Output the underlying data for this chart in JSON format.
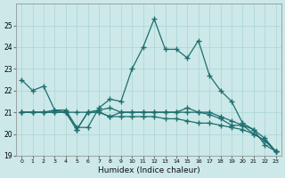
{
  "xlabel": "Humidex (Indice chaleur)",
  "background_color": "#cce8e8",
  "line_color": "#1e6e6e",
  "x": [
    0,
    1,
    2,
    3,
    4,
    5,
    6,
    7,
    8,
    9,
    10,
    11,
    12,
    13,
    14,
    15,
    16,
    17,
    18,
    19,
    20,
    21,
    22,
    23
  ],
  "series1": [
    22.5,
    22.0,
    22.2,
    21.1,
    21.1,
    20.3,
    20.3,
    21.2,
    21.6,
    21.5,
    23.0,
    24.0,
    25.3,
    23.9,
    23.9,
    23.5,
    24.3,
    22.7,
    22.0,
    21.5,
    20.5,
    20.2,
    19.5,
    19.2
  ],
  "series2": [
    21.0,
    21.0,
    21.0,
    21.1,
    21.0,
    20.2,
    21.0,
    21.1,
    21.2,
    21.0,
    21.0,
    21.0,
    21.0,
    21.0,
    21.0,
    21.2,
    21.0,
    21.0,
    20.8,
    20.6,
    20.4,
    20.2,
    19.8,
    19.2
  ],
  "series3": [
    21.0,
    21.0,
    21.0,
    21.0,
    21.0,
    20.2,
    21.0,
    21.0,
    20.8,
    21.0,
    21.0,
    21.0,
    21.0,
    21.0,
    21.0,
    21.0,
    21.0,
    20.9,
    20.7,
    20.4,
    20.4,
    20.0,
    19.7,
    19.2
  ],
  "series4": [
    21.0,
    21.0,
    21.0,
    21.0,
    21.0,
    21.0,
    21.0,
    21.0,
    20.8,
    20.8,
    20.8,
    20.8,
    20.8,
    20.7,
    20.7,
    20.6,
    20.5,
    20.5,
    20.4,
    20.3,
    20.2,
    20.0,
    19.7,
    19.2
  ],
  "ylim": [
    19,
    26
  ],
  "xlim": [
    -0.5,
    23.5
  ],
  "yticks": [
    19,
    20,
    21,
    22,
    23,
    24,
    25
  ],
  "xticks": [
    0,
    1,
    2,
    3,
    4,
    5,
    6,
    7,
    8,
    9,
    10,
    11,
    12,
    13,
    14,
    15,
    16,
    17,
    18,
    19,
    20,
    21,
    22,
    23
  ]
}
